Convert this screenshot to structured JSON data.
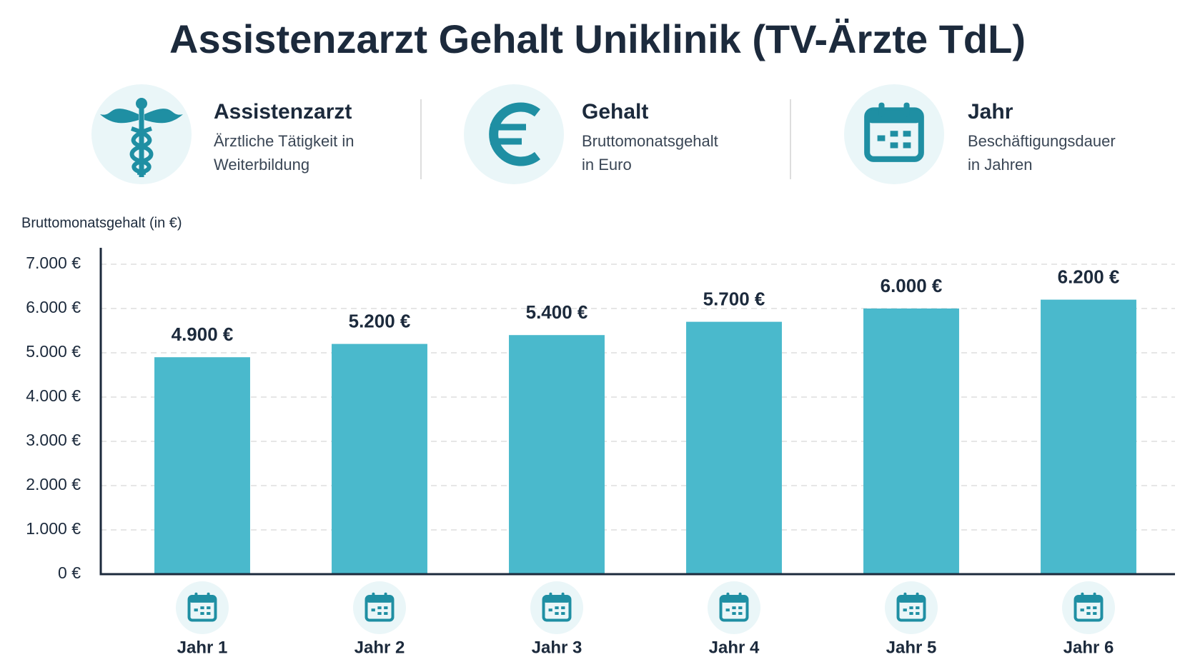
{
  "info_cards": [
    {
      "title": "Assistenzarzt",
      "lines": [
        "Ärztliche Tätigkeit in",
        "Weiterbildung"
      ]
    },
    {
      "title": "Gehalt",
      "lines": [
        "Bruttomonatsgehalt",
        "in Euro"
      ]
    },
    {
      "title": "Jahr",
      "lines": [
        "Beschäftigungsdauer",
        "in Jahren"
      ]
    }
  ],
  "chart_data": {
    "type": "bar",
    "title": "Assistenzarzt Gehalt Uniklinik (TV-Ärzte TdL)",
    "y_label": "Bruttomonatsgehalt (in €)",
    "categories": [
      "Jahr 1",
      "Jahr 2",
      "Jahr 3",
      "Jahr 4",
      "Jahr 5",
      "Jahr 6"
    ],
    "values": [
      4900,
      5200,
      5400,
      5700,
      6000,
      6200
    ],
    "value_labels": [
      "4.900 €",
      "5.200 €",
      "5.400 €",
      "5.700 €",
      "6.000 €",
      "6.200 €"
    ],
    "color": "#4ab9cc",
    "ylim": [
      0,
      7000
    ],
    "yticks": [
      {
        "value": 0,
        "label": "0 €"
      },
      {
        "value": 1000,
        "label": "1.000 €"
      },
      {
        "value": 2000,
        "label": "2.000 €"
      },
      {
        "value": 3000,
        "label": "3.000 €"
      },
      {
        "value": 4000,
        "label": "4.000 €"
      },
      {
        "value": 5000,
        "label": "5.000 €"
      },
      {
        "value": 6000,
        "label": "6.000 €"
      },
      {
        "value": 7000,
        "label": "7.000 €"
      }
    ],
    "grid": true
  }
}
